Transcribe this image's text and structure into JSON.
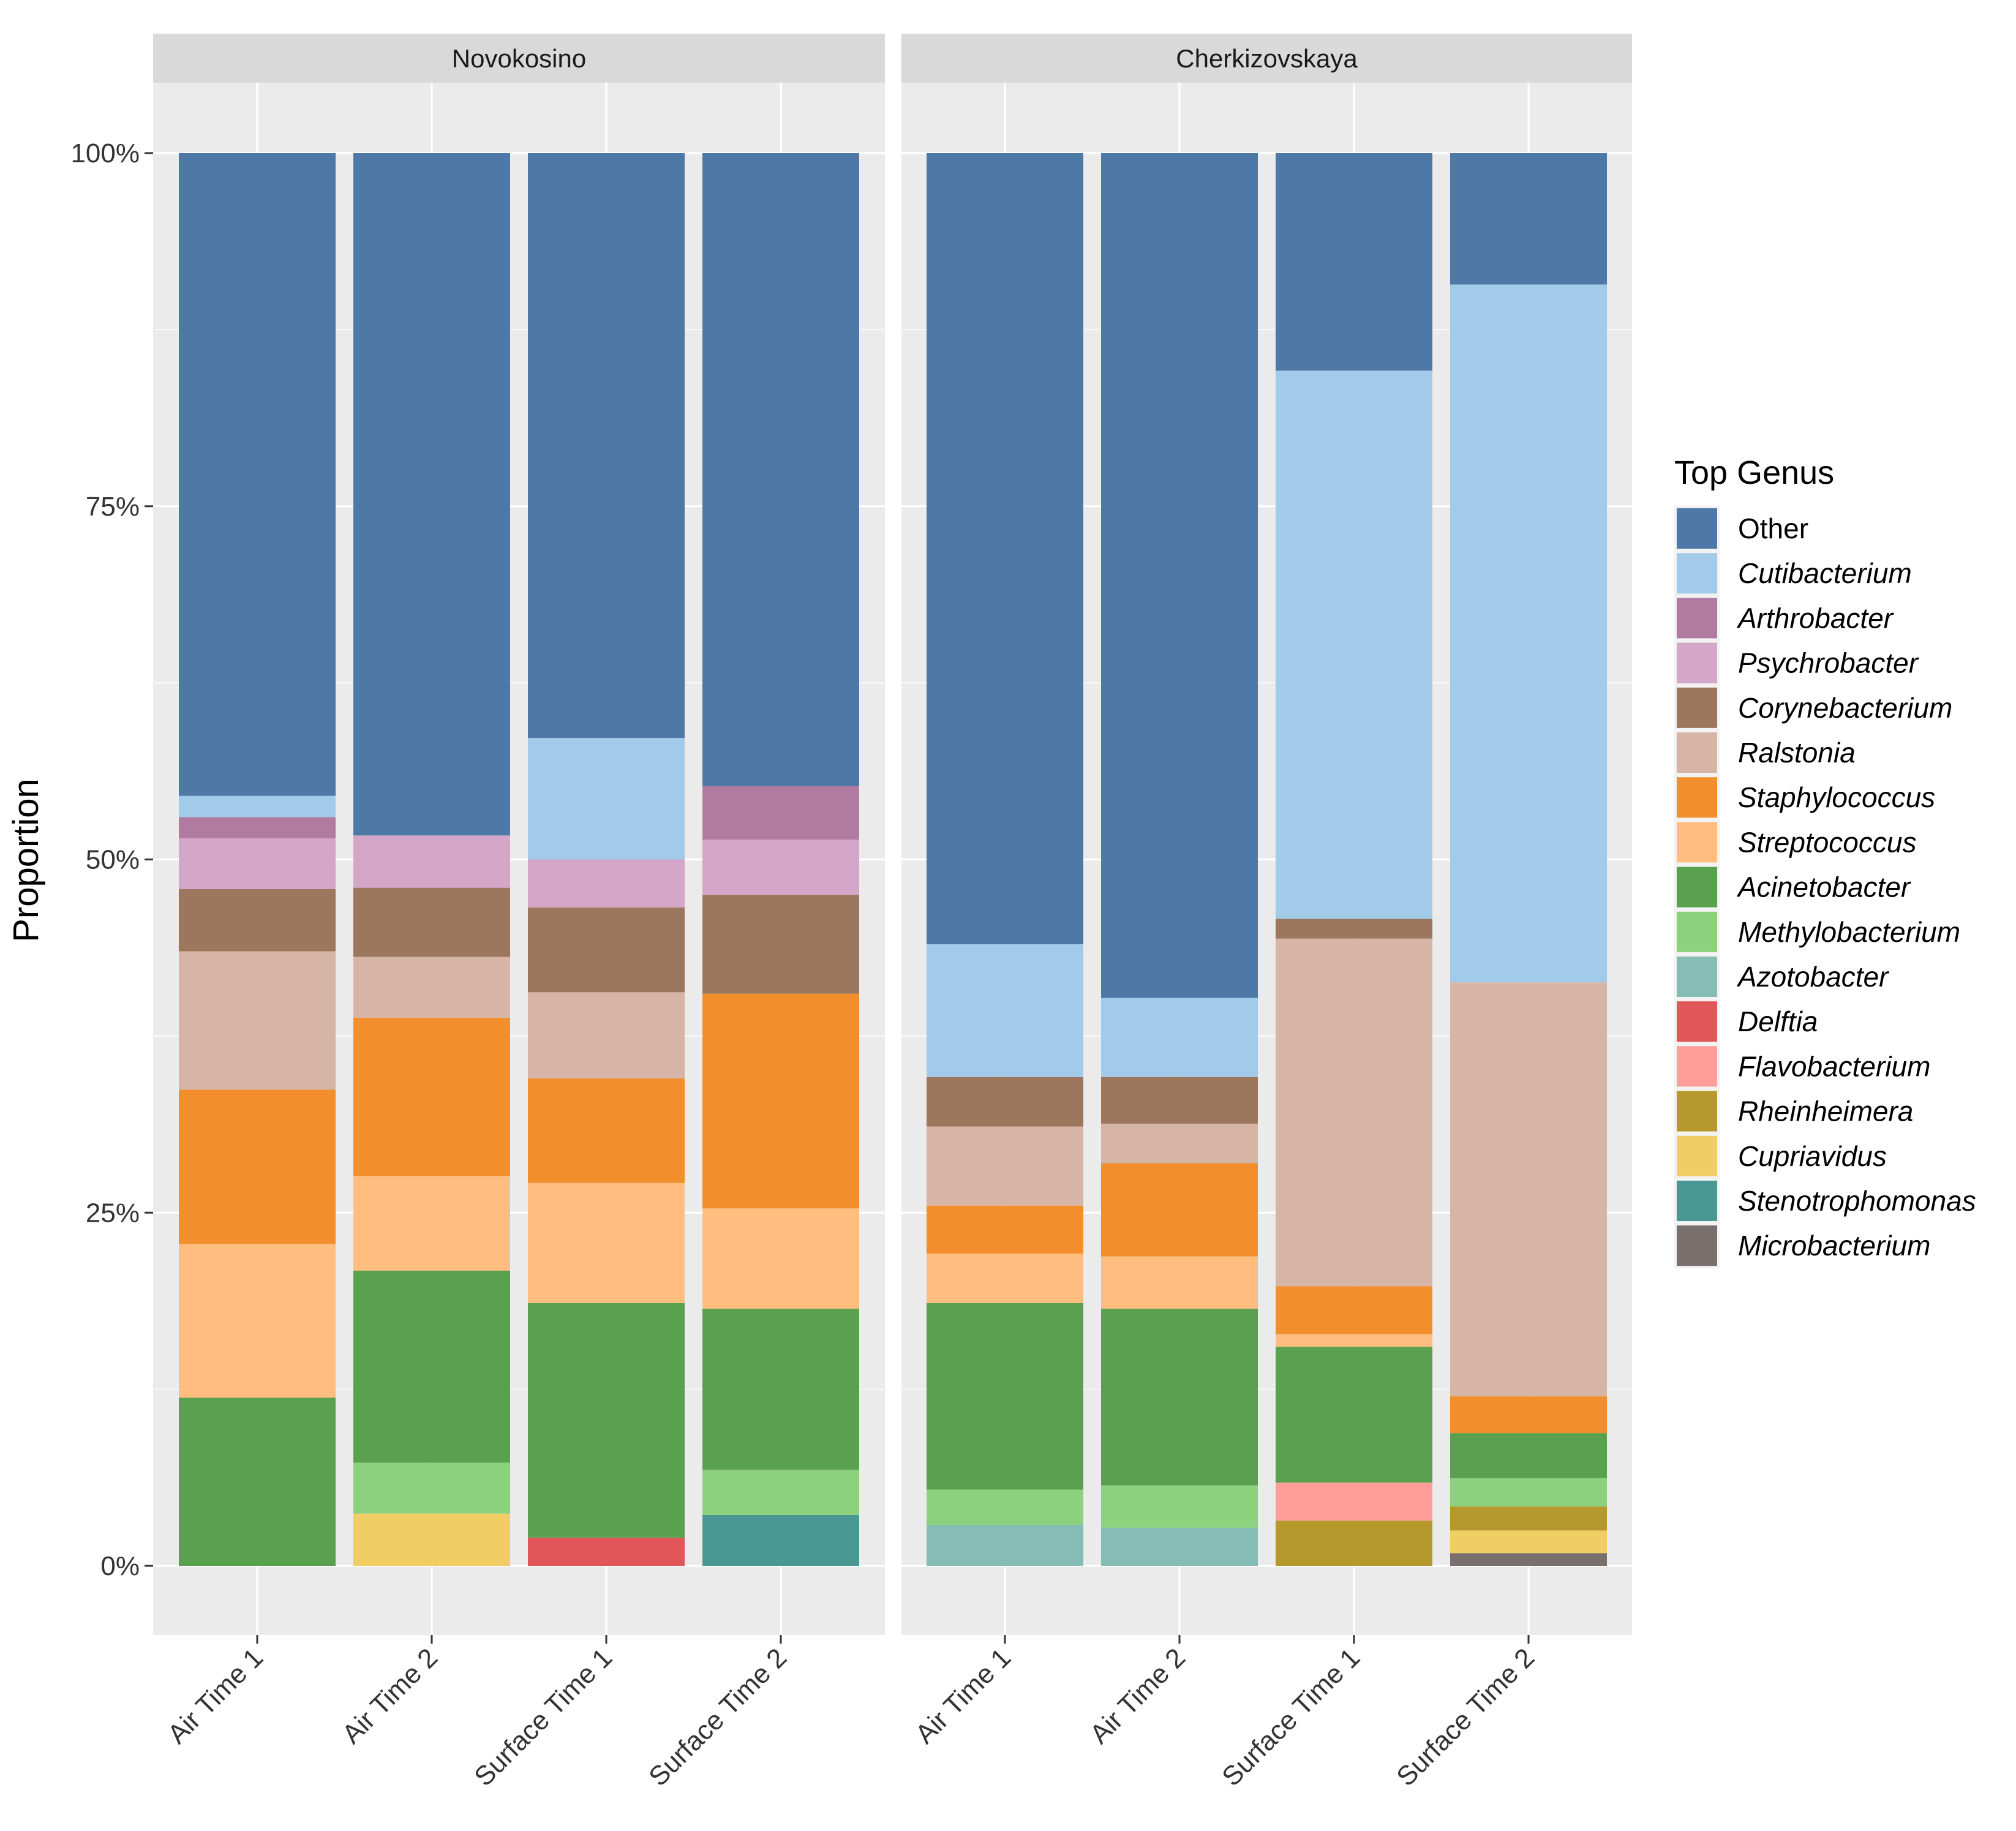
{
  "chart_data": {
    "type": "bar",
    "stacked": true,
    "ylabel": "Proportion",
    "xlabel": "",
    "ylim": [
      0,
      1
    ],
    "y_ticks": [
      0,
      0.25,
      0.5,
      0.75,
      1.0
    ],
    "y_tick_labels": [
      "0%",
      "25%",
      "50%",
      "75%",
      "100%"
    ],
    "legend_title": "Top Genus",
    "legend_position": "right",
    "genera": [
      {
        "name": "Other",
        "color": "#4e78a6",
        "italic": false
      },
      {
        "name": "Cutibacterium",
        "color": "#a2cae9",
        "italic": true
      },
      {
        "name": "Arthrobacter",
        "color": "#b07aa1",
        "italic": true
      },
      {
        "name": "Psychrobacter",
        "color": "#d4a6c8",
        "italic": true
      },
      {
        "name": "Corynebacterium",
        "color": "#9d765e",
        "italic": true
      },
      {
        "name": "Ralstonia",
        "color": "#d7b5a6",
        "italic": true
      },
      {
        "name": "Staphylococcus",
        "color": "#f28e2b",
        "italic": true
      },
      {
        "name": "Streptococcus",
        "color": "#ffbd7f",
        "italic": true
      },
      {
        "name": "Acinetobacter",
        "color": "#59a14f",
        "italic": true
      },
      {
        "name": "Methylobacterium",
        "color": "#8cd17d",
        "italic": true
      },
      {
        "name": "Azotobacter",
        "color": "#86bcb6",
        "italic": true
      },
      {
        "name": "Delftia",
        "color": "#e15759",
        "italic": true
      },
      {
        "name": "Flavobacterium",
        "color": "#ff9d9a",
        "italic": true
      },
      {
        "name": "Rheinheimera",
        "color": "#b6992d",
        "italic": true
      },
      {
        "name": "Cupriavidus",
        "color": "#f1ce63",
        "italic": true
      },
      {
        "name": "Stenotrophomonas",
        "color": "#499894",
        "italic": true
      },
      {
        "name": "Microbacterium",
        "color": "#79706e",
        "italic": true
      }
    ],
    "panels": [
      {
        "title": "Novokosino",
        "samples": [
          {
            "label": "Air Time 1",
            "values": {
              "Acinetobacter": 0.119,
              "Streptococcus": 0.109,
              "Staphylococcus": 0.109,
              "Ralstonia": 0.098,
              "Corynebacterium": 0.044,
              "Psychrobacter": 0.036,
              "Arthrobacter": 0.015,
              "Cutibacterium": 0.015,
              "Other": 0.455
            }
          },
          {
            "label": "Air Time 2",
            "values": {
              "Cupriavidus": 0.037,
              "Methylobacterium": 0.036,
              "Acinetobacter": 0.136,
              "Streptococcus": 0.067,
              "Staphylococcus": 0.112,
              "Ralstonia": 0.043,
              "Corynebacterium": 0.049,
              "Psychrobacter": 0.037,
              "Other": 0.483
            }
          },
          {
            "label": "Surface Time 1",
            "values": {
              "Delftia": 0.02,
              "Acinetobacter": 0.166,
              "Streptococcus": 0.085,
              "Staphylococcus": 0.074,
              "Ralstonia": 0.061,
              "Corynebacterium": 0.06,
              "Psychrobacter": 0.034,
              "Cutibacterium": 0.086,
              "Other": 0.414
            }
          },
          {
            "label": "Surface Time 2",
            "values": {
              "Stenotrophomonas": 0.036,
              "Methylobacterium": 0.032,
              "Acinetobacter": 0.114,
              "Streptococcus": 0.071,
              "Staphylococcus": 0.152,
              "Corynebacterium": 0.07,
              "Psychrobacter": 0.039,
              "Arthrobacter": 0.038,
              "Other": 0.448
            }
          }
        ]
      },
      {
        "title": "Cherkizovskaya",
        "samples": [
          {
            "label": "Air Time 1",
            "values": {
              "Azotobacter": 0.029,
              "Methylobacterium": 0.025,
              "Acinetobacter": 0.132,
              "Streptococcus": 0.035,
              "Staphylococcus": 0.034,
              "Ralstonia": 0.056,
              "Corynebacterium": 0.035,
              "Cutibacterium": 0.094,
              "Other": 0.56
            }
          },
          {
            "label": "Air Time 2",
            "values": {
              "Azotobacter": 0.027,
              "Methylobacterium": 0.03,
              "Acinetobacter": 0.125,
              "Streptococcus": 0.037,
              "Staphylococcus": 0.066,
              "Ralstonia": 0.028,
              "Corynebacterium": 0.033,
              "Cutibacterium": 0.056,
              "Other": 0.598
            }
          },
          {
            "label": "Surface Time 1",
            "values": {
              "Rheinheimera": 0.032,
              "Flavobacterium": 0.027,
              "Acinetobacter": 0.096,
              "Streptococcus": 0.009,
              "Staphylococcus": 0.034,
              "Ralstonia": 0.246,
              "Corynebacterium": 0.014,
              "Cutibacterium": 0.388,
              "Other": 0.154
            }
          },
          {
            "label": "Surface Time 2",
            "values": {
              "Microbacterium": 0.009,
              "Cupriavidus": 0.016,
              "Rheinheimera": 0.017,
              "Methylobacterium": 0.02,
              "Acinetobacter": 0.032,
              "Staphylococcus": 0.026,
              "Ralstonia": 0.293,
              "Cutibacterium": 0.494,
              "Other": 0.093
            }
          }
        ]
      }
    ]
  }
}
